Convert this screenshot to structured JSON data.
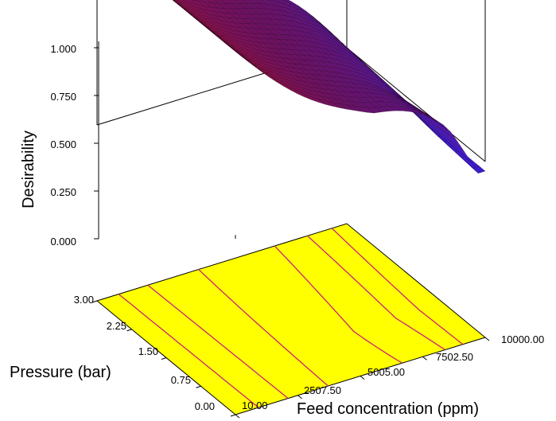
{
  "chart_data": {
    "type": "surface",
    "zlabel": "Desirability",
    "xlabel": "Feed concentration (ppm)",
    "ylabel": "Pressure (bar)",
    "x_ticks": [
      "10.00",
      "2507.50",
      "5005.00",
      "7502.50",
      "10000.00"
    ],
    "y_ticks": [
      "0.00",
      "0.75",
      "1.50",
      "2.25",
      "3.00"
    ],
    "z_ticks": [
      "0.000",
      "0.250",
      "0.500",
      "0.750",
      "1.000"
    ],
    "xlim": [
      10,
      10000
    ],
    "ylim": [
      0,
      3
    ],
    "zlim": [
      0,
      1
    ],
    "surface_colors": {
      "high": "#ee1133",
      "mid": "#7a1470",
      "low": "#4422ee"
    },
    "floor_color": "#ffff00",
    "contour_color": "#cc2277"
  }
}
